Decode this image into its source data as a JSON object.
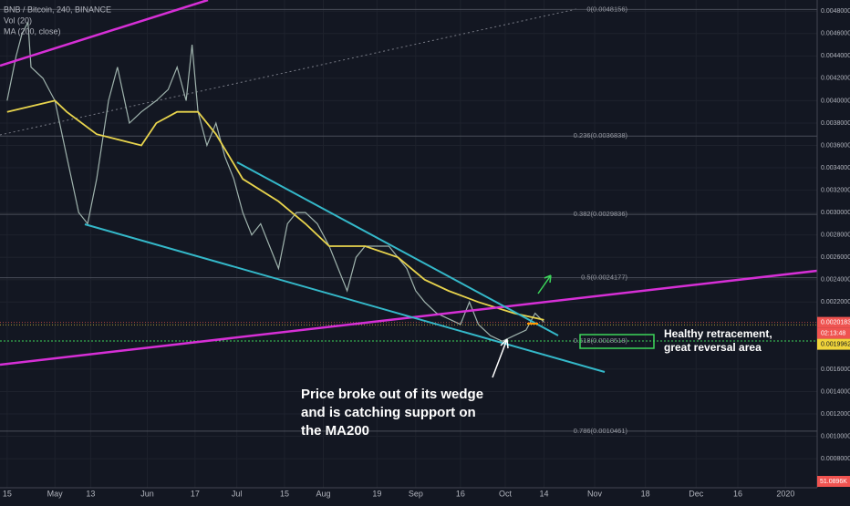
{
  "chart_data": {
    "type": "line",
    "title": "BNB / Bitcoin, 240, BINANCE",
    "indicators": [
      "Vol (20)",
      "MA (200, close)"
    ],
    "x": [
      0,
      3,
      5,
      7,
      8,
      12,
      16,
      20,
      24,
      27,
      30,
      34,
      37,
      41,
      45,
      50,
      54,
      57,
      60,
      62,
      64,
      67,
      70,
      73,
      76,
      79,
      82,
      85,
      88,
      91,
      94,
      97,
      100,
      104,
      108,
      111,
      114,
      117,
      120,
      124,
      128,
      131,
      134,
      137,
      140,
      144,
      148,
      152,
      155,
      158,
      162,
      166,
      170,
      174,
      177,
      180
    ],
    "series": [
      {
        "name": "BNB / Bitcoin",
        "color": "#9fb3ad",
        "values": [
          0.004,
          0.0044,
          0.0046,
          0.0047,
          0.0043,
          0.0042,
          0.004,
          0.0035,
          0.003,
          0.0029,
          0.0033,
          0.004,
          0.0043,
          0.0038,
          0.0039,
          0.004,
          0.0041,
          0.0043,
          0.004,
          0.0045,
          0.0039,
          0.0036,
          0.0038,
          0.0035,
          0.0033,
          0.003,
          0.0028,
          0.0029,
          0.0027,
          0.0025,
          0.0029,
          0.003,
          0.003,
          0.0029,
          0.0027,
          0.0025,
          0.0023,
          0.0026,
          0.0027,
          0.0027,
          0.0027,
          0.0026,
          0.0025,
          0.0023,
          0.0022,
          0.0021,
          0.00205,
          0.002,
          0.0022,
          0.002,
          0.0019,
          0.00185,
          0.0019,
          0.00195,
          0.0021,
          0.00202
        ]
      },
      {
        "name": "MA (200, close)",
        "color": "#e8d44d",
        "values": [
          0.0039,
          null,
          null,
          null,
          null,
          null,
          0.004,
          0.0039,
          null,
          null,
          0.0037,
          null,
          null,
          null,
          0.0036,
          0.0038,
          null,
          0.0039,
          null,
          null,
          0.0039,
          null,
          0.0037,
          null,
          null,
          0.0033,
          null,
          null,
          null,
          0.0031,
          null,
          null,
          0.0029,
          null,
          0.0027,
          null,
          null,
          null,
          0.0027,
          null,
          null,
          0.0026,
          null,
          null,
          0.0024,
          null,
          0.0023,
          null,
          null,
          0.0022,
          null,
          null,
          0.0021,
          null,
          null,
          0.00204
        ]
      }
    ],
    "xlim": [
      -2.4,
      271.6
    ],
    "ylim": [
      0.00054,
      0.0049
    ],
    "xticks": [
      {
        "value": 0,
        "label": "15"
      },
      {
        "value": 16,
        "label": "May"
      },
      {
        "value": 28,
        "label": "13"
      },
      {
        "value": 47,
        "label": "Jun"
      },
      {
        "value": 63,
        "label": "17"
      },
      {
        "value": 77,
        "label": "Jul"
      },
      {
        "value": 93,
        "label": "15"
      },
      {
        "value": 106,
        "label": "Aug"
      },
      {
        "value": 124,
        "label": "19"
      },
      {
        "value": 137,
        "label": "Sep"
      },
      {
        "value": 152,
        "label": "16"
      },
      {
        "value": 167,
        "label": "Oct"
      },
      {
        "value": 180,
        "label": "14"
      },
      {
        "value": 197,
        "label": "Nov"
      },
      {
        "value": 214,
        "label": "18"
      },
      {
        "value": 231,
        "label": "Dec"
      },
      {
        "value": 245,
        "label": "16"
      },
      {
        "value": 261,
        "label": "2020"
      }
    ],
    "yticks": [
      {
        "value": 0.0048,
        "label": "0.0048000"
      },
      {
        "value": 0.0046,
        "label": "0.0046000"
      },
      {
        "value": 0.0044,
        "label": "0.0044000"
      },
      {
        "value": 0.0042,
        "label": "0.0042000"
      },
      {
        "value": 0.004,
        "label": "0.0040000"
      },
      {
        "value": 0.0038,
        "label": "0.0038000"
      },
      {
        "value": 0.0036,
        "label": "0.0036000"
      },
      {
        "value": 0.0034,
        "label": "0.0034000"
      },
      {
        "value": 0.0032,
        "label": "0.0032000"
      },
      {
        "value": 0.003,
        "label": "0.0030000"
      },
      {
        "value": 0.0028,
        "label": "0.0028000"
      },
      {
        "value": 0.0026,
        "label": "0.0026000"
      },
      {
        "value": 0.0024,
        "label": "0.0024000"
      },
      {
        "value": 0.0022,
        "label": "0.0022000"
      },
      {
        "value": 0.0016,
        "label": "0.0016000"
      },
      {
        "value": 0.0014,
        "label": "0.0014000"
      },
      {
        "value": 0.0012,
        "label": "0.0012000"
      },
      {
        "value": 0.001,
        "label": "0.0010000"
      },
      {
        "value": 0.0008,
        "label": "0.0008000"
      }
    ],
    "fib_levels": [
      {
        "value": 0.0048156,
        "label": "0(0.0048156)"
      },
      {
        "value": 0.0036838,
        "label": "0.236(0.0036838)"
      },
      {
        "value": 0.0029836,
        "label": "0.382(0.0029836)"
      },
      {
        "value": 0.0024177,
        "label": "0.5(0.0024177)"
      },
      {
        "value": 0.0018518,
        "label": "0.618(0.0018518)"
      },
      {
        "value": 0.0010461,
        "label": "0.786(0.0010461)"
      }
    ],
    "price_markers": [
      {
        "value": 0.0020183,
        "label": "0.0020183",
        "color": "#ef5350"
      },
      {
        "value": 0.0019962,
        "label": "0.0019962",
        "color": "#f0d43a"
      }
    ],
    "countdown": "02:13:48",
    "volume_label": "51.0896K",
    "grid": true,
    "annotations": [
      "Price broke out of its wedge",
      "and is catching support on",
      "the MA200",
      "Healthy retracement,",
      "great reversal area"
    ]
  }
}
